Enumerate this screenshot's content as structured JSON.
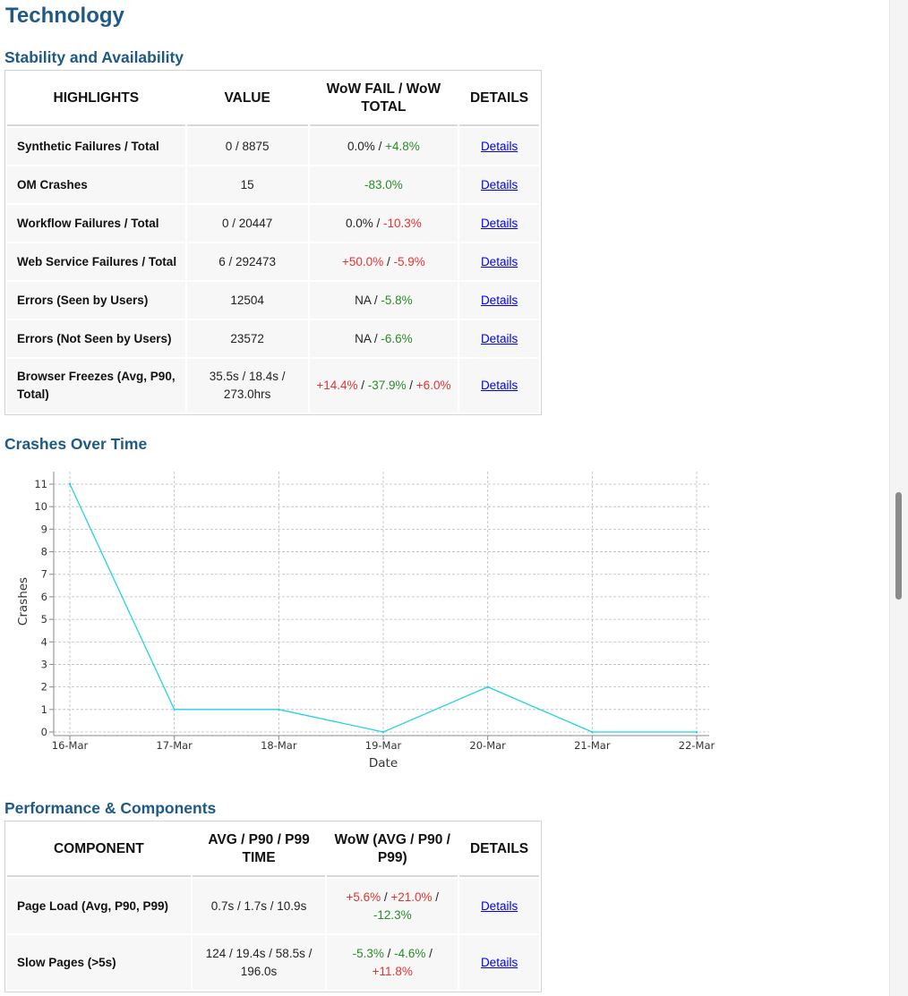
{
  "page_title": "Technology",
  "stability": {
    "heading": "Stability and Availability",
    "headers": [
      "HIGHLIGHTS",
      "VALUE",
      "WoW FAIL / WoW TOTAL",
      "DETAILS"
    ],
    "rows": [
      {
        "label": "Synthetic Failures / Total",
        "value": "0 / 8875",
        "wow": [
          {
            "t": "0.0%",
            "c": "neu"
          },
          {
            "t": " / ",
            "c": "neu"
          },
          {
            "t": "+4.8%",
            "c": "neg"
          }
        ],
        "details": "Details"
      },
      {
        "label": "OM Crashes",
        "value": "15",
        "wow": [
          {
            "t": "-83.0%",
            "c": "neg"
          }
        ],
        "details": "Details"
      },
      {
        "label": "Workflow Failures / Total",
        "value": "0 / 20447",
        "wow": [
          {
            "t": "0.0%",
            "c": "neu"
          },
          {
            "t": " / ",
            "c": "neu"
          },
          {
            "t": "-10.3%",
            "c": "pos"
          }
        ],
        "details": "Details"
      },
      {
        "label": "Web Service Failures / Total",
        "value": "6 / 292473",
        "wow": [
          {
            "t": "+50.0%",
            "c": "pos"
          },
          {
            "t": " / ",
            "c": "neu"
          },
          {
            "t": "-5.9%",
            "c": "pos"
          }
        ],
        "details": "Details"
      },
      {
        "label": "Errors (Seen by Users)",
        "value": "12504",
        "wow": [
          {
            "t": "NA",
            "c": "neu"
          },
          {
            "t": " / ",
            "c": "neu"
          },
          {
            "t": "-5.8%",
            "c": "neg"
          }
        ],
        "details": "Details"
      },
      {
        "label": "Errors (Not Seen by Users)",
        "value": "23572",
        "wow": [
          {
            "t": "NA",
            "c": "neu"
          },
          {
            "t": " / ",
            "c": "neu"
          },
          {
            "t": "-6.6%",
            "c": "neg"
          }
        ],
        "details": "Details"
      },
      {
        "label": "Browser Freezes (Avg, P90, Total)",
        "value": "35.5s / 18.4s / 273.0hrs",
        "wow": [
          {
            "t": "+14.4%",
            "c": "pos"
          },
          {
            "t": " / ",
            "c": "neu"
          },
          {
            "t": "-37.9%",
            "c": "neg"
          },
          {
            "t": " / ",
            "c": "neu"
          },
          {
            "t": "+6.0%",
            "c": "pos"
          }
        ],
        "details": "Details"
      }
    ]
  },
  "crashes": {
    "heading": "Crashes Over Time"
  },
  "chart_data": {
    "type": "line",
    "x": [
      "16-Mar",
      "17-Mar",
      "18-Mar",
      "19-Mar",
      "20-Mar",
      "21-Mar",
      "22-Mar"
    ],
    "series": [
      {
        "values": [
          11,
          1,
          1,
          0,
          2,
          0,
          0
        ]
      }
    ],
    "xlabel": "Date",
    "ylabel": "Crashes",
    "ylim": [
      0,
      11
    ],
    "yticks": [
      0,
      1,
      2,
      3,
      4,
      5,
      6,
      7,
      8,
      9,
      10,
      11
    ],
    "grid": true,
    "color": "#22d3e0"
  },
  "performance": {
    "heading": "Performance & Components",
    "headers": [
      "COMPONENT",
      "AVG / P90 / P99 TIME",
      "WoW (AVG / P90 / P99)",
      "DETAILS"
    ],
    "rows": [
      {
        "label": "Page Load (Avg, P90, P99)",
        "value": "0.7s / 1.7s / 10.9s",
        "wow": [
          {
            "t": "+5.6%",
            "c": "pos"
          },
          {
            "t": " / ",
            "c": "neu"
          },
          {
            "t": "+21.0%",
            "c": "pos"
          },
          {
            "t": " / ",
            "c": "neu"
          },
          {
            "t": "-12.3%",
            "c": "neg"
          }
        ],
        "details": "Details"
      },
      {
        "label": "Slow Pages (>5s)",
        "value": "124 / 19.4s / 58.5s / 196.0s",
        "wow": [
          {
            "t": "-5.3%",
            "c": "neg"
          },
          {
            "t": " / ",
            "c": "neu"
          },
          {
            "t": "-4.6%",
            "c": "neg"
          },
          {
            "t": " / ",
            "c": "neu"
          },
          {
            "t": "+11.8%",
            "c": "pos"
          }
        ],
        "details": "Details"
      }
    ]
  }
}
